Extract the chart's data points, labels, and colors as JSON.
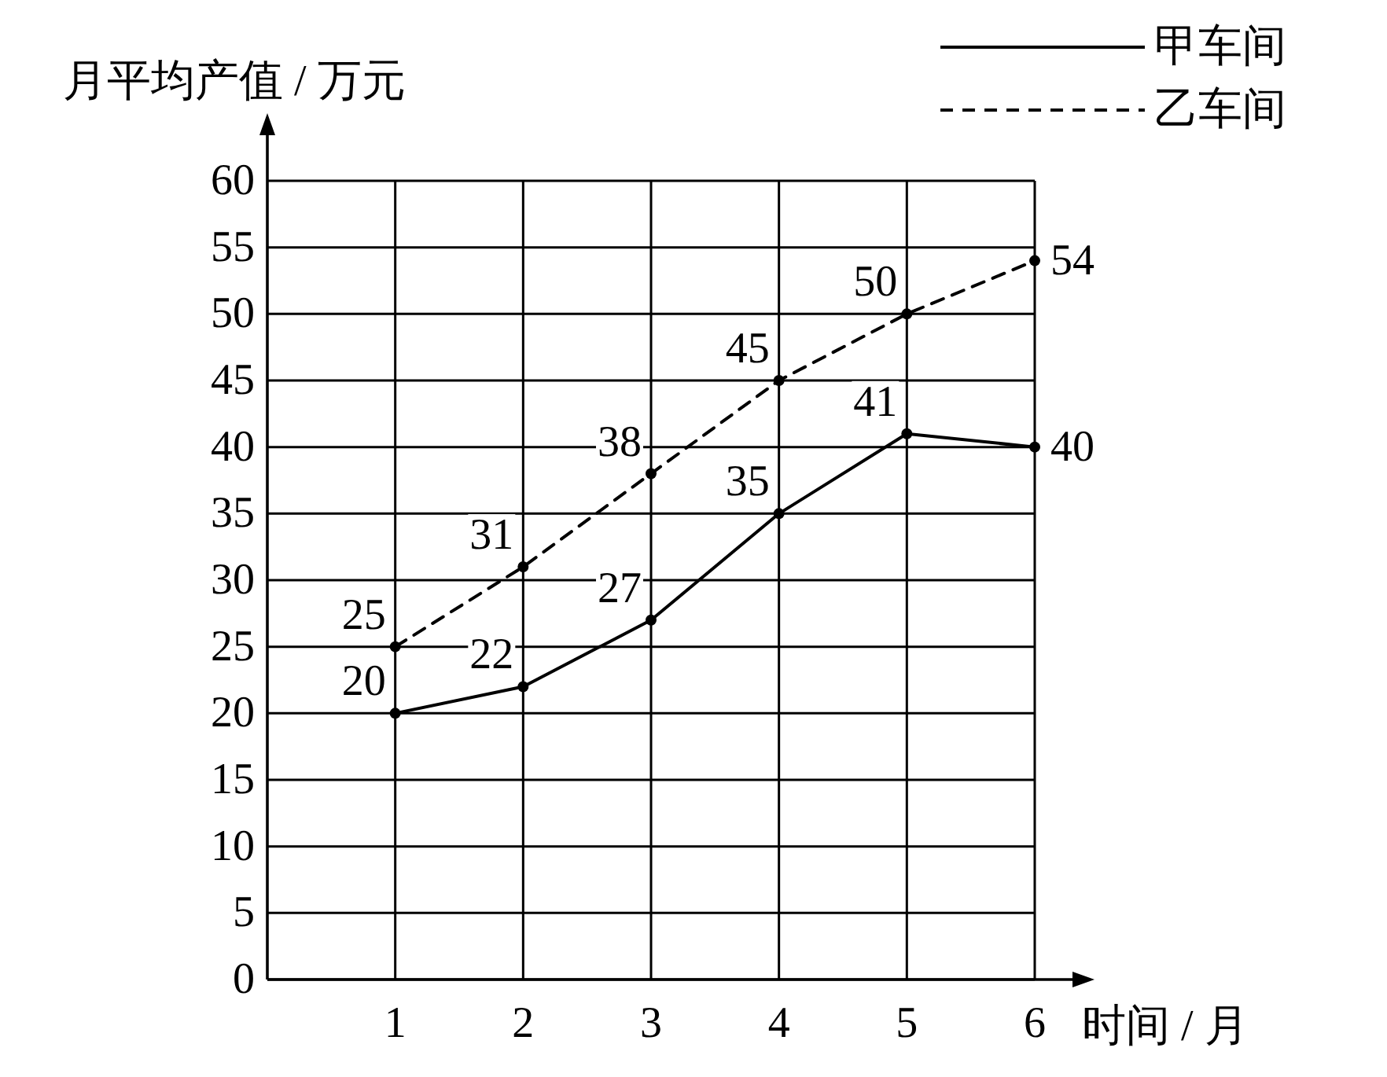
{
  "chart_data": {
    "type": "line",
    "xlabel": "时间 / 月",
    "ylabel": "月平均产值 / 万元",
    "x": [
      1,
      2,
      3,
      4,
      5,
      6
    ],
    "xlim": [
      0,
      6
    ],
    "xticks": [
      1,
      2,
      3,
      4,
      5,
      6
    ],
    "ylim": [
      0,
      60
    ],
    "yticks": [
      0,
      5,
      10,
      15,
      20,
      25,
      30,
      35,
      40,
      45,
      50,
      55,
      60
    ],
    "grid": true,
    "legend": "top right",
    "marker": "circle",
    "data_labels": true,
    "series": [
      {
        "name": "甲车间",
        "color": "#000000",
        "line_style": "solid",
        "values": [
          20,
          22,
          27,
          35,
          41,
          40
        ]
      },
      {
        "name": "乙车间",
        "color": "#000000",
        "line_style": "dashed",
        "values": [
          25,
          31,
          38,
          45,
          50,
          54
        ]
      }
    ]
  }
}
